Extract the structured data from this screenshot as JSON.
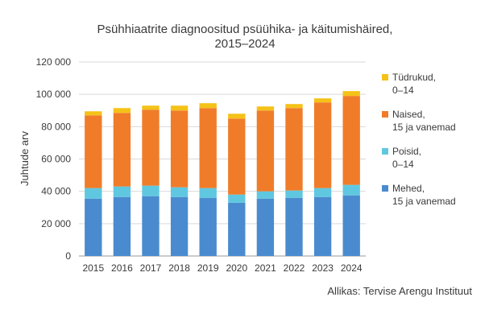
{
  "chart_data": {
    "type": "bar",
    "stacked": true,
    "title_line1": "Psühhiaatrite diagnoositud psüühika- ja käitumishäired,",
    "title_line2": "2015–2024",
    "ylabel": "Juhtude arv",
    "xlabel": "",
    "source": "Allikas: Tervise Arengu Instituut",
    "ylim": [
      0,
      120000
    ],
    "yticks": [
      0,
      20000,
      40000,
      60000,
      80000,
      100000,
      120000
    ],
    "ytick_labels": [
      "0",
      "20 000",
      "40 000",
      "60 000",
      "80 000",
      "100 000",
      "120 000"
    ],
    "grid": true,
    "legend_position": "right",
    "categories": [
      "2015",
      "2016",
      "2017",
      "2018",
      "2019",
      "2020",
      "2021",
      "2022",
      "2023",
      "2024"
    ],
    "series": [
      {
        "name": "Mehed, 15 ja vanemad",
        "legend_lines": [
          "Mehed,",
          "15 ja vanemad"
        ],
        "color": "#4a8bcf",
        "values": [
          35500,
          36500,
          37000,
          36500,
          36000,
          33000,
          35500,
          36000,
          36500,
          37500
        ]
      },
      {
        "name": "Poisid, 0–14",
        "legend_lines": [
          "Poisid,",
          "0–14"
        ],
        "color": "#5fc8e0",
        "values": [
          6500,
          6500,
          6500,
          6000,
          6000,
          5000,
          4500,
          4500,
          5500,
          6500
        ]
      },
      {
        "name": "Naised, 15 ja vanemad",
        "legend_lines": [
          "Naised,",
          "15 ja vanemad"
        ],
        "color": "#f07c2a",
        "values": [
          45000,
          45500,
          47000,
          47500,
          49500,
          47000,
          50000,
          51000,
          53000,
          55000
        ]
      },
      {
        "name": "Tüdrukud, 0–14",
        "legend_lines": [
          "Tüdrukud,",
          "0–14"
        ],
        "color": "#f5c218",
        "values": [
          2500,
          3000,
          2500,
          3000,
          3000,
          3000,
          2500,
          2500,
          2500,
          3000
        ]
      }
    ]
  }
}
